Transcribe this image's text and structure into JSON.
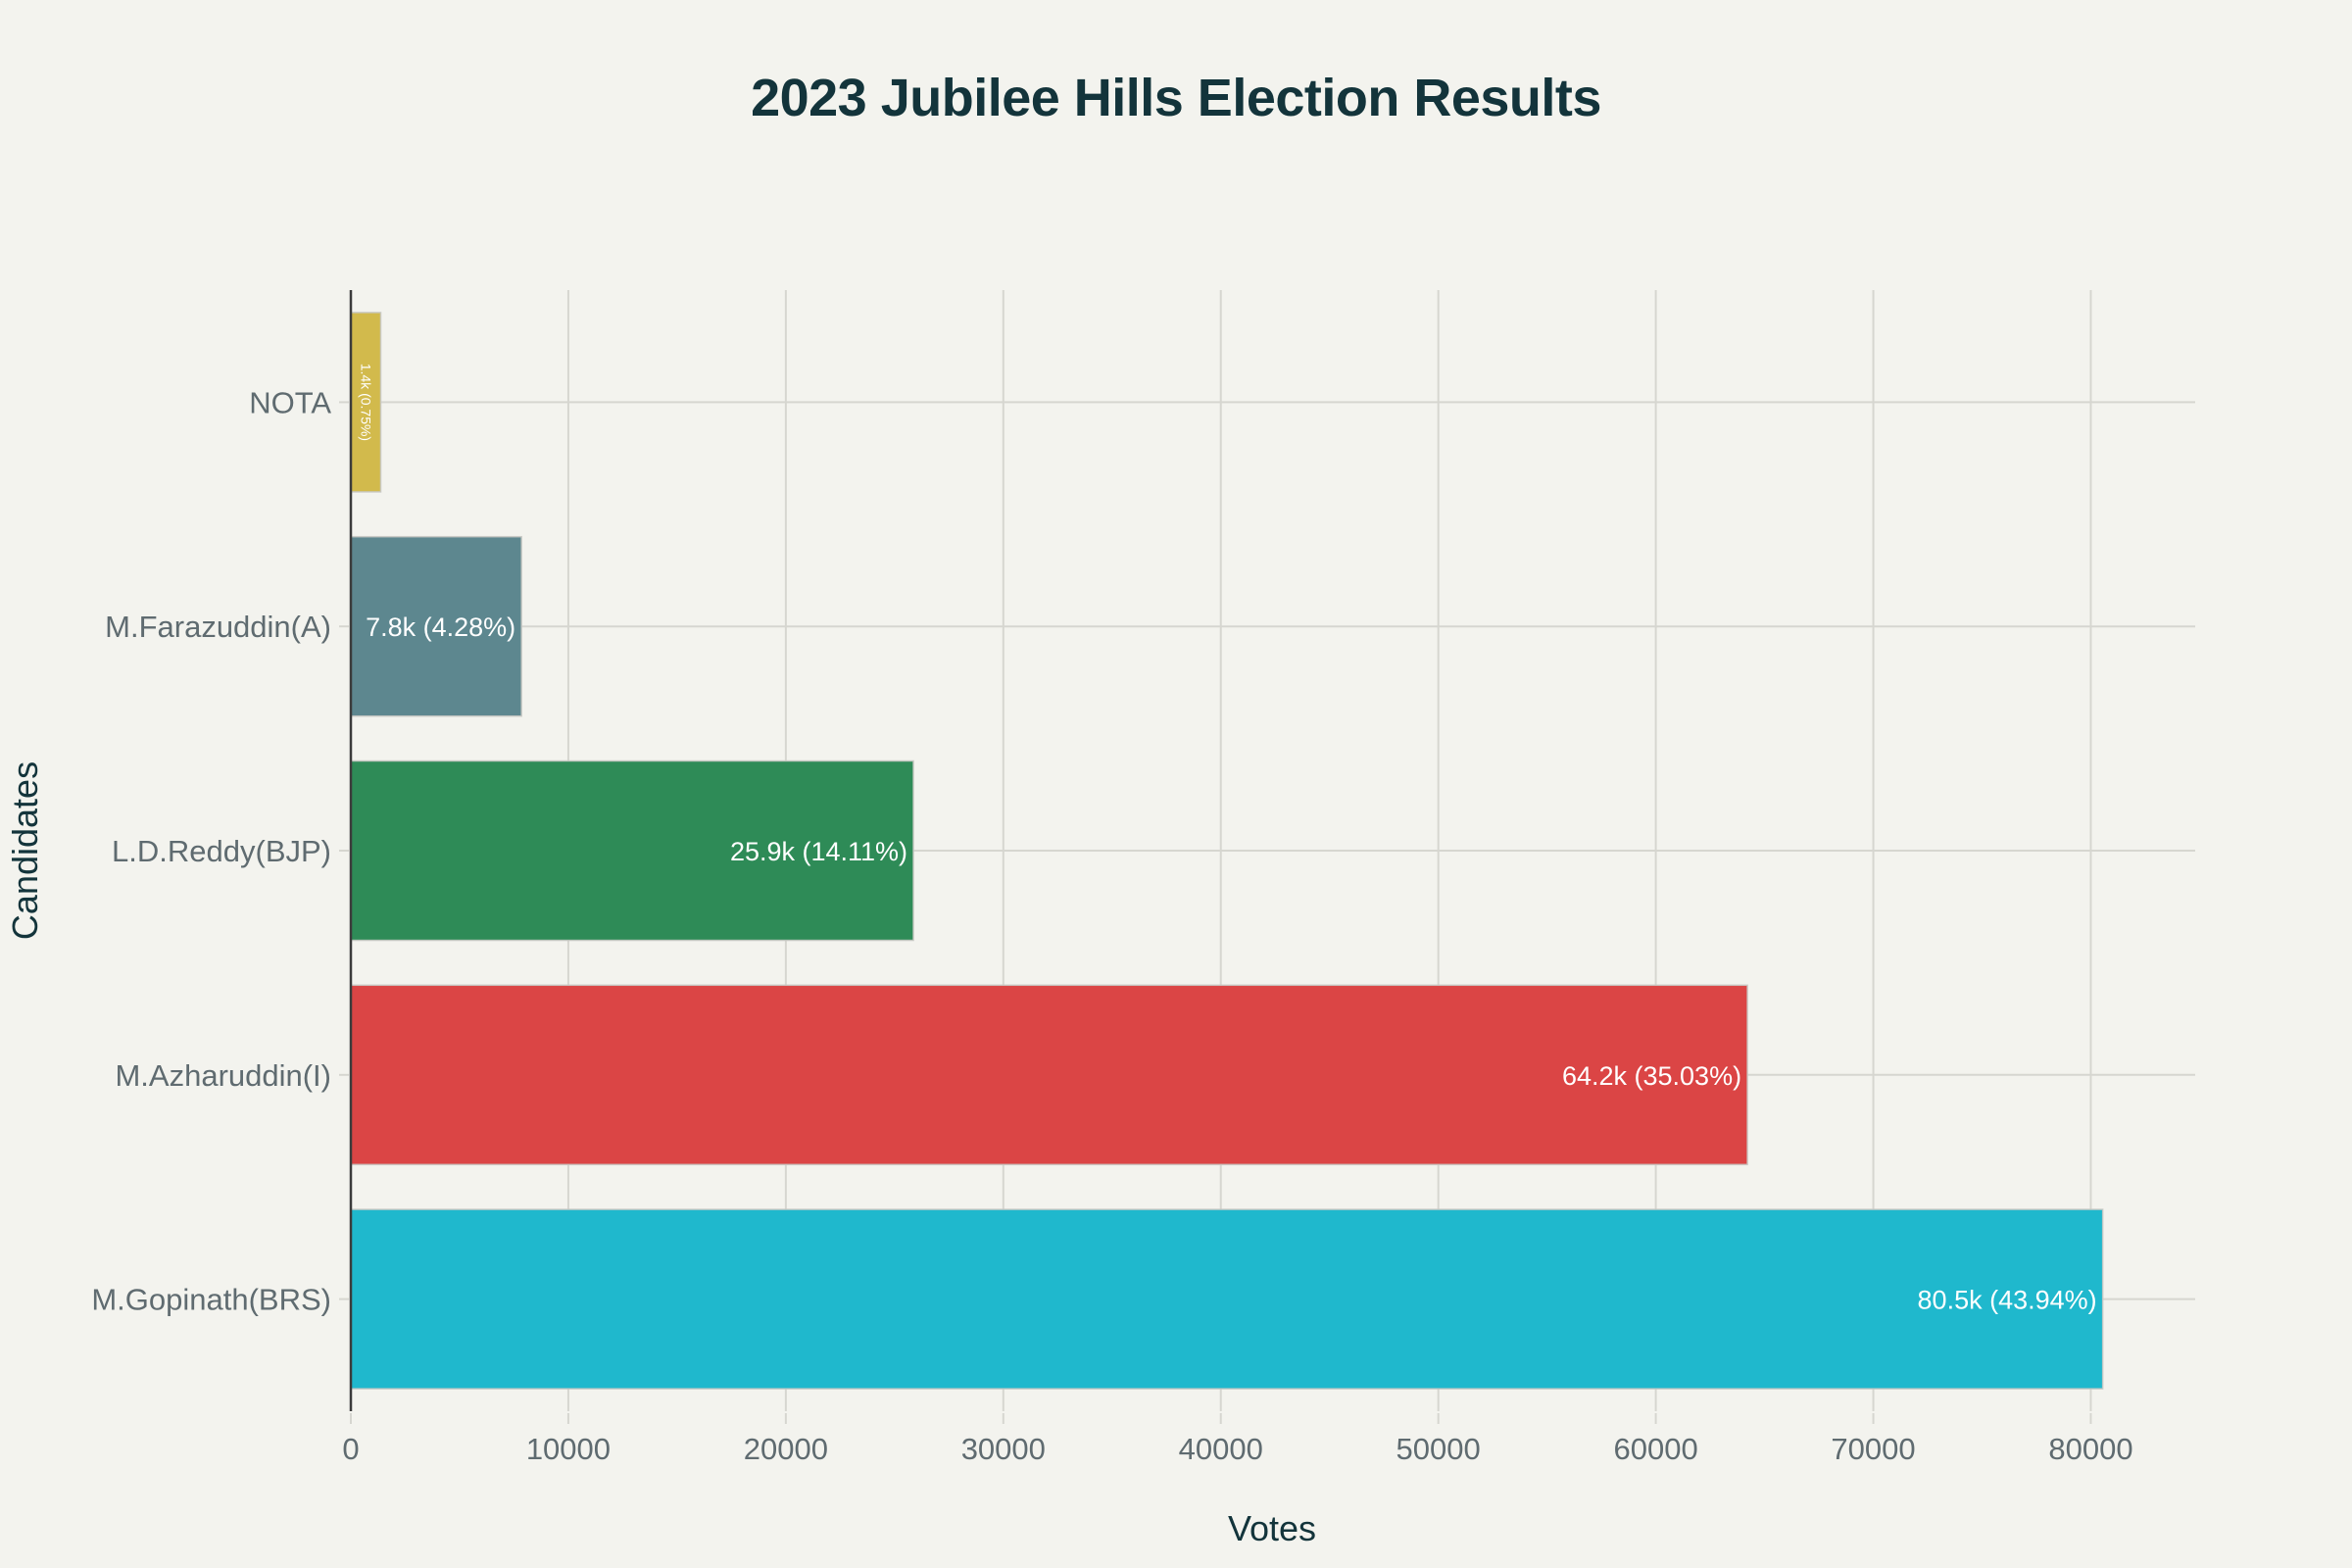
{
  "chart_data": {
    "type": "bar",
    "orientation": "horizontal",
    "title": "2023 Jubilee Hills Election Results",
    "xlabel": "Votes",
    "ylabel": "Candidates",
    "xlim": [
      0,
      84800
    ],
    "x_ticks": [
      0,
      10000,
      20000,
      30000,
      40000,
      50000,
      60000,
      70000,
      80000
    ],
    "x_tick_labels": [
      "0",
      "10000",
      "20000",
      "30000",
      "40000",
      "50000",
      "60000",
      "70000",
      "80000"
    ],
    "grid": true,
    "legend": "none",
    "categories": [
      "NOTA",
      "M.Farazuddin(A)",
      "L.D.Reddy(BJP)",
      "M.Azharuddin(I)",
      "M.Gopinath(BRS)"
    ],
    "values": [
      1375,
      7848,
      25866,
      64212,
      80549
    ],
    "percentages": [
      0.75,
      4.28,
      14.11,
      35.03,
      43.94
    ],
    "data_labels": [
      "1.4k (0.75%)",
      "7.8k (4.28%)",
      "25.9k (14.11%)",
      "64.2k (35.03%)",
      "80.5k (43.94%)"
    ],
    "colors": [
      "#D2BA4C",
      "#5D878F",
      "#2E8B57",
      "#DB4545",
      "#1FB8CD"
    ]
  },
  "theme": {
    "background": "#F3F3EE",
    "title_color": "#13343B",
    "tick_color": "#5F6B70",
    "grid_color": "#D6D6D0"
  }
}
